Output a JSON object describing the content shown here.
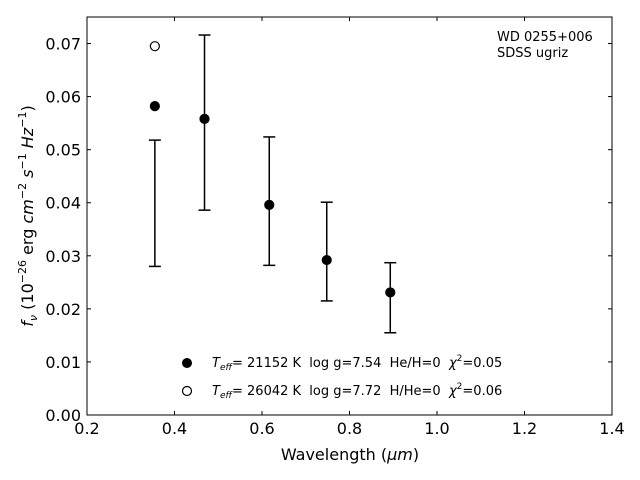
{
  "chart_data": {
    "type": "scatter",
    "xlabel_main": "Wavelength (",
    "xlabel_unit": "μm",
    "xlabel_end": ")",
    "ylabel_f": "f",
    "ylabel_nu": "ν",
    "ylabel_open": " (10",
    "ylabel_exp1": "−26",
    "ylabel_erg": " erg ",
    "ylabel_cm": "cm",
    "ylabel_exp2": "−2",
    "ylabel_s": " s",
    "ylabel_exp3": "−1",
    "ylabel_hz": " Hz",
    "ylabel_exp4": "−1",
    "ylabel_close": ")",
    "xlim": [
      0.2,
      1.4
    ],
    "ylim": [
      0.0,
      0.075
    ],
    "xticks": [
      0.2,
      0.4,
      0.6,
      0.8,
      1.0,
      1.2,
      1.4
    ],
    "xtick_labels": [
      "0.2",
      "0.4",
      "0.6",
      "0.8",
      "1.0",
      "1.2",
      "1.4"
    ],
    "yticks": [
      0.0,
      0.01,
      0.02,
      0.03,
      0.04,
      0.05,
      0.06,
      0.07
    ],
    "ytick_labels": [
      "0.00",
      "0.01",
      "0.02",
      "0.03",
      "0.04",
      "0.05",
      "0.06",
      "0.07"
    ],
    "grid": false,
    "annotation_lines": [
      "WD 0255+006",
      "SDSS ugriz"
    ],
    "observed": [
      {
        "x": 0.3551,
        "y": 0.0399,
        "yerr": 0.0119
      },
      {
        "x": 0.4686,
        "y": 0.0551,
        "yerr": 0.0165
      },
      {
        "x": 0.6166,
        "y": 0.0403,
        "yerr": 0.0121
      },
      {
        "x": 0.748,
        "y": 0.0308,
        "yerr": 0.0093
      },
      {
        "x": 0.8932,
        "y": 0.0221,
        "yerr": 0.0066
      }
    ],
    "models": [
      {
        "marker": "filled-circle",
        "points": [
          {
            "x": 0.3551,
            "y": 0.0582
          },
          {
            "x": 0.4686,
            "y": 0.0558
          },
          {
            "x": 0.6166,
            "y": 0.0396
          },
          {
            "x": 0.748,
            "y": 0.0292
          },
          {
            "x": 0.8932,
            "y": 0.0231
          }
        ],
        "legend": {
          "T": "T",
          "eff": "eff",
          "text1": "= 21152 K  log g=7.54  He/H=0  ",
          "chi": "χ",
          "sq": "2",
          "text2": "=0.05"
        }
      },
      {
        "marker": "open-circle",
        "points": [
          {
            "x": 0.3551,
            "y": 0.0695
          }
        ],
        "legend": {
          "T": "T",
          "eff": "eff",
          "text1": "= 26042 K  log g=7.72  H/He=0  ",
          "chi": "χ",
          "sq": "2",
          "text2": "=0.06"
        }
      }
    ],
    "legend_position": "bottom-center"
  }
}
